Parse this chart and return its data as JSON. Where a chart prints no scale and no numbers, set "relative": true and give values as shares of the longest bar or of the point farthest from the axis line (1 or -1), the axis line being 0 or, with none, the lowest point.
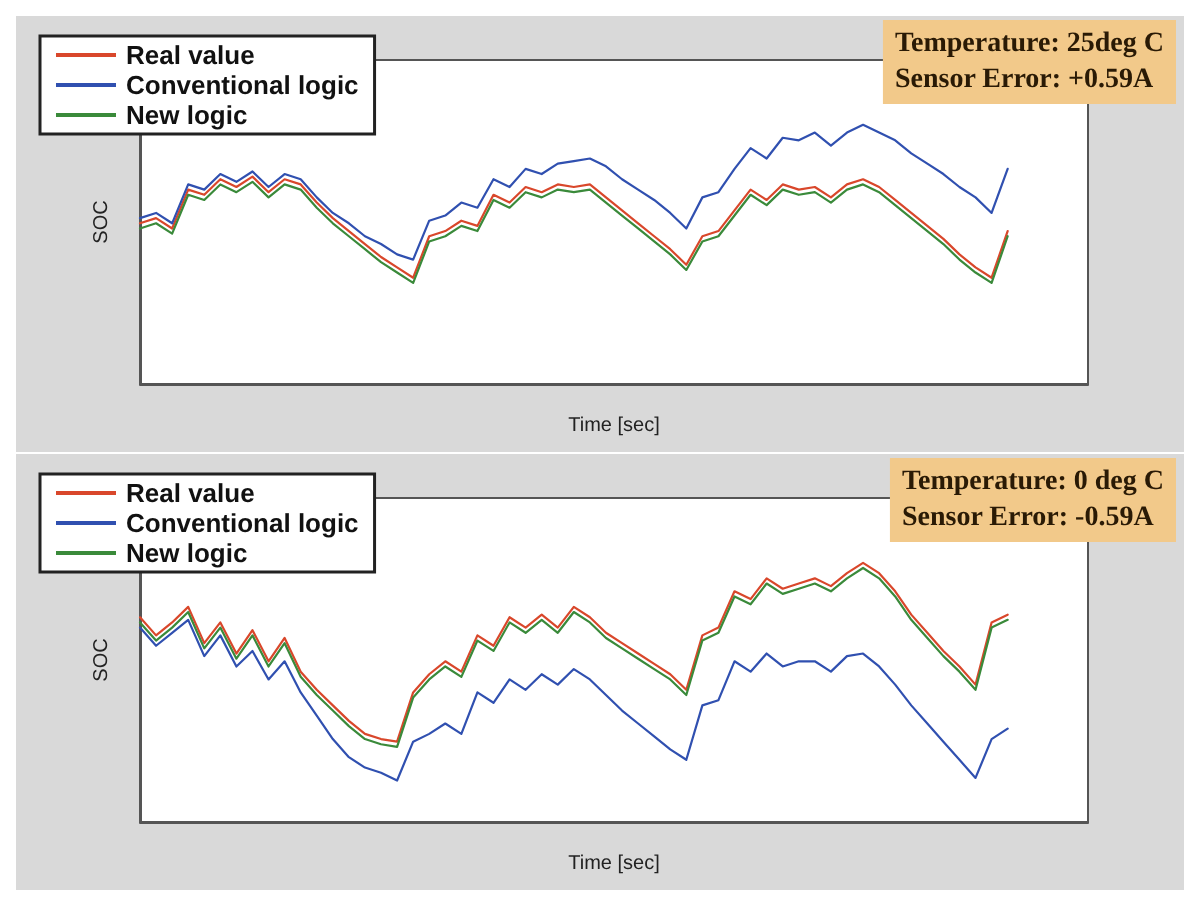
{
  "chart_data": [
    {
      "type": "line",
      "relative": true,
      "xlabel": "Time [sec]",
      "ylabel": "SOC",
      "legend": "top left",
      "line_style": "solid",
      "annotations": [
        "Temperature: 25deg C",
        "Sensor Error: +0.59A"
      ],
      "categories": [
        null,
        null,
        null,
        null,
        null,
        null,
        null,
        null,
        null,
        null,
        null,
        null,
        null,
        null,
        null,
        null,
        null,
        null,
        null,
        null,
        null,
        null,
        null,
        null,
        null,
        null,
        null,
        null,
        null,
        null,
        null,
        null,
        null,
        null,
        null,
        null,
        null,
        null,
        null,
        null,
        null,
        null,
        null,
        null,
        null,
        null,
        null,
        null,
        null,
        null,
        null,
        null,
        null,
        null,
        null,
        null,
        null,
        null,
        null,
        null
      ],
      "series": [
        {
          "name": "Real value",
          "color": "#d9472b",
          "values": [
            0.62,
            0.64,
            0.6,
            0.75,
            0.73,
            0.79,
            0.76,
            0.8,
            0.74,
            0.79,
            0.77,
            0.7,
            0.64,
            0.59,
            0.54,
            0.49,
            0.45,
            0.41,
            0.57,
            0.59,
            0.63,
            0.61,
            0.73,
            0.7,
            0.76,
            0.74,
            0.77,
            0.76,
            0.77,
            0.72,
            0.67,
            0.62,
            0.57,
            0.52,
            0.46,
            0.57,
            0.59,
            0.67,
            0.75,
            0.71,
            0.77,
            0.75,
            0.76,
            0.72,
            0.77,
            0.79,
            0.76,
            0.71,
            0.66,
            0.61,
            0.56,
            0.5,
            0.45,
            0.41,
            0.59,
            null,
            null,
            null,
            null,
            null
          ]
        },
        {
          "name": "Conventional logic",
          "color": "#3050b0",
          "values": [
            0.64,
            0.66,
            0.62,
            0.77,
            0.75,
            0.81,
            0.78,
            0.82,
            0.76,
            0.81,
            0.79,
            0.72,
            0.66,
            0.62,
            0.57,
            0.54,
            0.5,
            0.48,
            0.63,
            0.65,
            0.7,
            0.68,
            0.79,
            0.76,
            0.83,
            0.81,
            0.85,
            0.86,
            0.87,
            0.84,
            0.79,
            0.75,
            0.71,
            0.66,
            0.6,
            0.72,
            0.74,
            0.83,
            0.91,
            0.87,
            0.95,
            0.94,
            0.97,
            0.92,
            0.97,
            1.0,
            0.97,
            0.94,
            0.89,
            0.85,
            0.81,
            0.76,
            0.72,
            0.66,
            0.83,
            null,
            null,
            null,
            null,
            null
          ]
        },
        {
          "name": "New logic",
          "color": "#3a8a3a",
          "values": [
            0.6,
            0.62,
            0.58,
            0.73,
            0.71,
            0.77,
            0.74,
            0.78,
            0.72,
            0.77,
            0.75,
            0.68,
            0.62,
            0.57,
            0.52,
            0.47,
            0.43,
            0.39,
            0.55,
            0.57,
            0.61,
            0.59,
            0.71,
            0.68,
            0.74,
            0.72,
            0.75,
            0.74,
            0.75,
            0.7,
            0.65,
            0.6,
            0.55,
            0.5,
            0.44,
            0.55,
            0.57,
            0.65,
            0.73,
            0.69,
            0.75,
            0.73,
            0.74,
            0.7,
            0.75,
            0.77,
            0.74,
            0.69,
            0.64,
            0.59,
            0.54,
            0.48,
            0.43,
            0.39,
            0.57,
            null,
            null,
            null,
            null,
            null
          ]
        }
      ]
    },
    {
      "type": "line",
      "relative": true,
      "xlabel": "Time [sec]",
      "ylabel": "SOC",
      "legend": "top left",
      "line_style": "solid",
      "annotations": [
        "Temperature: 0 deg C",
        "Sensor Error: -0.59A"
      ],
      "categories": [
        null,
        null,
        null,
        null,
        null,
        null,
        null,
        null,
        null,
        null,
        null,
        null,
        null,
        null,
        null,
        null,
        null,
        null,
        null,
        null,
        null,
        null,
        null,
        null,
        null,
        null,
        null,
        null,
        null,
        null,
        null,
        null,
        null,
        null,
        null,
        null,
        null,
        null,
        null,
        null,
        null,
        null,
        null,
        null,
        null,
        null,
        null,
        null,
        null,
        null,
        null,
        null,
        null,
        null,
        null,
        null,
        null,
        null,
        null,
        null
      ],
      "series": [
        {
          "name": "Real value",
          "color": "#d9472b",
          "values": [
            0.79,
            0.72,
            0.77,
            0.83,
            0.69,
            0.77,
            0.65,
            0.74,
            0.62,
            0.71,
            0.58,
            0.51,
            0.45,
            0.39,
            0.34,
            0.32,
            0.31,
            0.5,
            0.57,
            0.62,
            0.58,
            0.72,
            0.68,
            0.79,
            0.75,
            0.8,
            0.75,
            0.83,
            0.79,
            0.73,
            0.69,
            0.65,
            0.61,
            0.57,
            0.51,
            0.72,
            0.75,
            0.89,
            0.86,
            0.94,
            0.9,
            0.92,
            0.94,
            0.91,
            0.96,
            1.0,
            0.96,
            0.89,
            0.8,
            0.73,
            0.66,
            0.6,
            0.53,
            0.77,
            0.8,
            null,
            null,
            null,
            null,
            null
          ]
        },
        {
          "name": "Conventional logic",
          "color": "#3050b0",
          "values": [
            0.75,
            0.68,
            0.73,
            0.78,
            0.64,
            0.72,
            0.6,
            0.66,
            0.55,
            0.62,
            0.5,
            0.41,
            0.32,
            0.25,
            0.21,
            0.19,
            0.16,
            0.31,
            0.34,
            0.38,
            0.34,
            0.5,
            0.46,
            0.55,
            0.51,
            0.57,
            0.53,
            0.59,
            0.55,
            0.49,
            0.43,
            0.38,
            0.33,
            0.28,
            0.24,
            0.45,
            0.47,
            0.62,
            0.58,
            0.65,
            0.6,
            0.62,
            0.62,
            0.58,
            0.64,
            0.65,
            0.6,
            0.53,
            0.45,
            0.38,
            0.31,
            0.24,
            0.17,
            0.32,
            0.36,
            null,
            null,
            null,
            null,
            null
          ]
        },
        {
          "name": "New logic",
          "color": "#3a8a3a",
          "values": [
            0.77,
            0.7,
            0.75,
            0.81,
            0.67,
            0.75,
            0.63,
            0.72,
            0.6,
            0.69,
            0.56,
            0.49,
            0.43,
            0.37,
            0.32,
            0.3,
            0.29,
            0.48,
            0.55,
            0.6,
            0.56,
            0.7,
            0.66,
            0.77,
            0.73,
            0.78,
            0.73,
            0.81,
            0.77,
            0.71,
            0.67,
            0.63,
            0.59,
            0.55,
            0.49,
            0.7,
            0.73,
            0.87,
            0.84,
            0.92,
            0.88,
            0.9,
            0.92,
            0.89,
            0.94,
            0.98,
            0.94,
            0.87,
            0.78,
            0.71,
            0.64,
            0.58,
            0.51,
            0.75,
            0.78,
            null,
            null,
            null,
            null,
            null
          ]
        }
      ]
    }
  ]
}
